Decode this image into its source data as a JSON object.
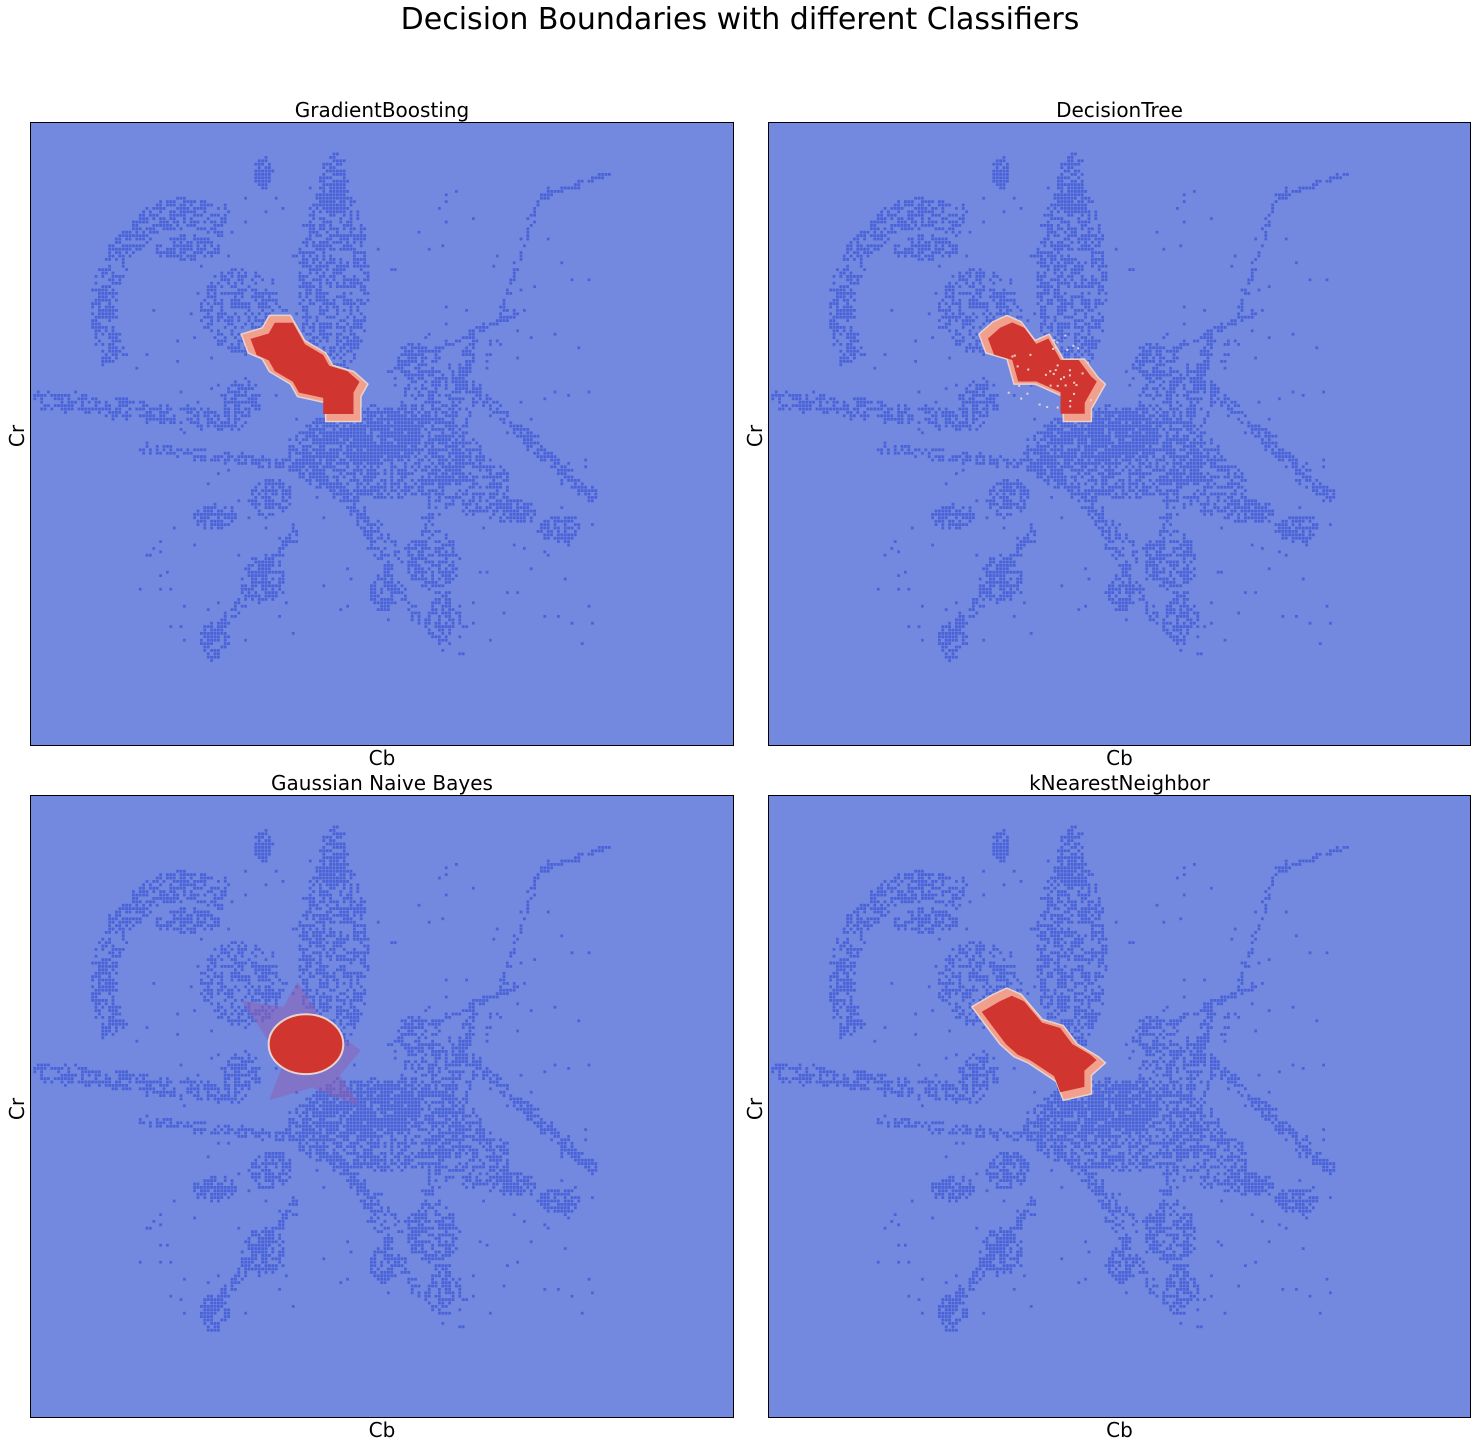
{
  "figure": {
    "suptitle": "Decision Boundaries with different Classifiers"
  },
  "colors": {
    "background_class": "#7389e0",
    "point_class": "#4a62d8",
    "skin_region": "#d1352f",
    "skin_edge": "#f2a08e",
    "boundary": "#e8d3cf"
  },
  "chart_data": [
    {
      "type": "scatter",
      "title": "GradientBoosting",
      "xlabel": "Cb",
      "ylabel": "Cr",
      "grid": false,
      "ticks": false,
      "model": "gradientboosting"
    },
    {
      "type": "scatter",
      "title": "DecisionTree",
      "xlabel": "Cb",
      "ylabel": "Cr",
      "grid": false,
      "ticks": false,
      "model": "decisiontree"
    },
    {
      "type": "scatter",
      "title": "Gaussian Naive Bayes",
      "xlabel": "Cb",
      "ylabel": "Cr",
      "grid": false,
      "ticks": false,
      "model": "gaussiannb"
    },
    {
      "type": "scatter",
      "title": "kNearestNeighbor",
      "xlabel": "Cb",
      "ylabel": "Cr",
      "grid": false,
      "ticks": false,
      "model": "knn"
    }
  ]
}
